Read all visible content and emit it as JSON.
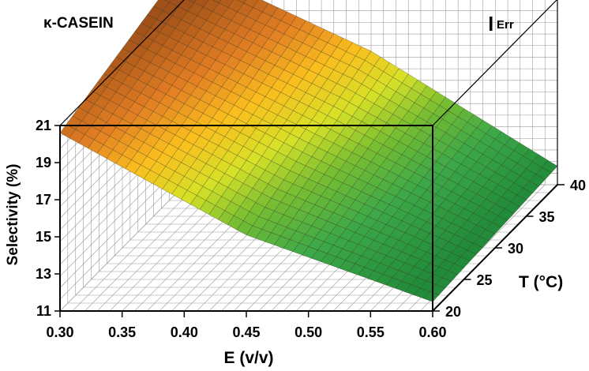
{
  "chart_data": {
    "type": "surface",
    "title": "κ-CASEIN",
    "legend_label": "Err",
    "xlabel": "E (v/v)",
    "ylabel": "T (°C)",
    "zlabel": "Selectivity (%)",
    "x_ticks": [
      "0.30",
      "0.35",
      "0.40",
      "0.45",
      "0.50",
      "0.55",
      "0.60"
    ],
    "y_ticks": [
      "20",
      "25",
      "30",
      "35",
      "40"
    ],
    "z_ticks": [
      "11",
      "13",
      "15",
      "17",
      "19",
      "21"
    ],
    "xlim": [
      0.3,
      0.6
    ],
    "ylim": [
      20,
      40
    ],
    "zlim": [
      11,
      21
    ],
    "grid": true,
    "surface_points": [
      {
        "E": 0.3,
        "T": 20,
        "selectivity": 20.6
      },
      {
        "E": 0.3,
        "T": 40,
        "selectivity": 22.9
      },
      {
        "E": 0.45,
        "T": 20,
        "selectivity": 15.1
      },
      {
        "E": 0.45,
        "T": 40,
        "selectivity": 18.2
      },
      {
        "E": 0.6,
        "T": 20,
        "selectivity": 11.5
      },
      {
        "E": 0.6,
        "T": 40,
        "selectivity": 12.0
      }
    ]
  }
}
